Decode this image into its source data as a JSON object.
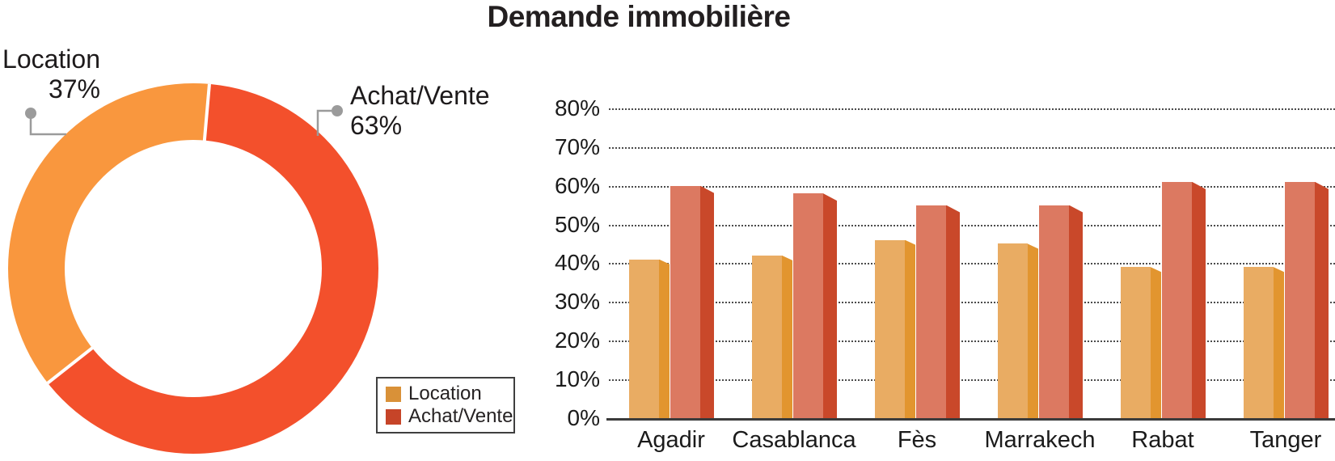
{
  "title": "Demande immobilière",
  "donut": {
    "callout_location": {
      "label": "Location",
      "pct": "37%"
    },
    "callout_achat": {
      "label": "Achat/Vente",
      "pct": "63%"
    }
  },
  "legend": {
    "items": [
      {
        "label": "Location",
        "color": "#d99138"
      },
      {
        "label": "Achat/Vente",
        "color": "#c64428"
      }
    ]
  },
  "chart_data": [
    {
      "type": "pie",
      "subtype": "donut",
      "title": "Demande immobilière",
      "labels": [
        "Location",
        "Achat/Vente"
      ],
      "values": [
        37,
        63
      ],
      "colors": [
        "#f9973e",
        "#f3502c"
      ],
      "start_angle_deg": 5,
      "legend_position": "none",
      "annotations": [
        "Location 37%",
        "Achat/Vente 63%"
      ]
    },
    {
      "type": "bar",
      "title": "Demande immobilière",
      "categories": [
        "Agadir",
        "Casablanca",
        "Fès",
        "Marrakech",
        "Rabat",
        "Tanger"
      ],
      "series": [
        {
          "name": "Location",
          "values": [
            41,
            42,
            46,
            45,
            39,
            39
          ],
          "front_color": "#e9ac63",
          "side_color": "#e2952f"
        },
        {
          "name": "Achat/Vente",
          "values": [
            60,
            58,
            55,
            55,
            61,
            61
          ],
          "front_color": "#dc7961",
          "side_color": "#c9482a"
        }
      ],
      "xlabel": "",
      "ylabel": "",
      "ylim": [
        0,
        80
      ],
      "ytick_labels": [
        "0%",
        "10%",
        "20%",
        "30%",
        "40%",
        "50%",
        "60%",
        "70%",
        "80%"
      ],
      "grid": "horizontal-dotted",
      "effect": "3d-bevel",
      "legend_position": "left-of-plot"
    }
  ],
  "connector_color": "#9b9b9b"
}
